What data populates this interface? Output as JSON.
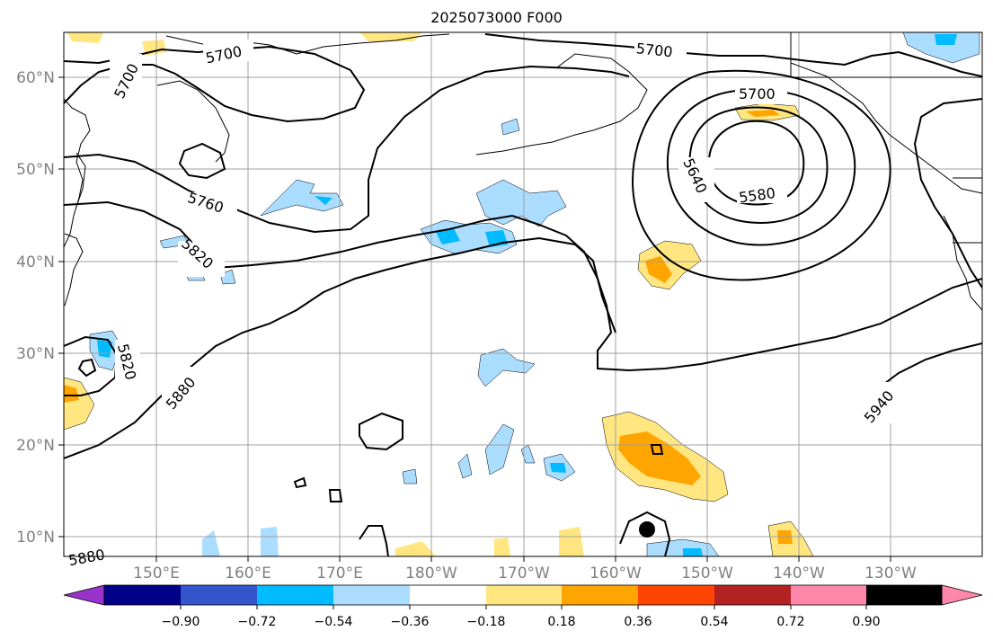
{
  "title": "2025073000 F000",
  "map": {
    "lat_ticks": [
      "60°N",
      "50°N",
      "40°N",
      "30°N",
      "20°N",
      "10°N"
    ],
    "lon_ticks": [
      "150°E",
      "160°E",
      "170°E",
      "180°W",
      "170°W",
      "160°W",
      "150°W",
      "140°W",
      "130°W"
    ],
    "contour_labels": [
      "5700",
      "5700",
      "5700",
      "5700",
      "5760",
      "5820",
      "5820",
      "5880",
      "5640",
      "5580",
      "5940",
      "5880"
    ],
    "colors": {
      "contour": "#000000",
      "coast": "#000000",
      "grid": "#a0a0a0"
    }
  },
  "colorbar": {
    "labels": [
      "−0.90",
      "−0.72",
      "−0.54",
      "−0.36",
      "−0.18",
      "0.18",
      "0.36",
      "0.54",
      "0.72",
      "0.90"
    ],
    "colors": [
      "#9933cc",
      "#000088",
      "#3355cc",
      "#00bbff",
      "#aaddff",
      "#ffffff",
      "#ffe680",
      "#ffa500",
      "#ff4400",
      "#b22222",
      "#ff88aa"
    ]
  }
}
